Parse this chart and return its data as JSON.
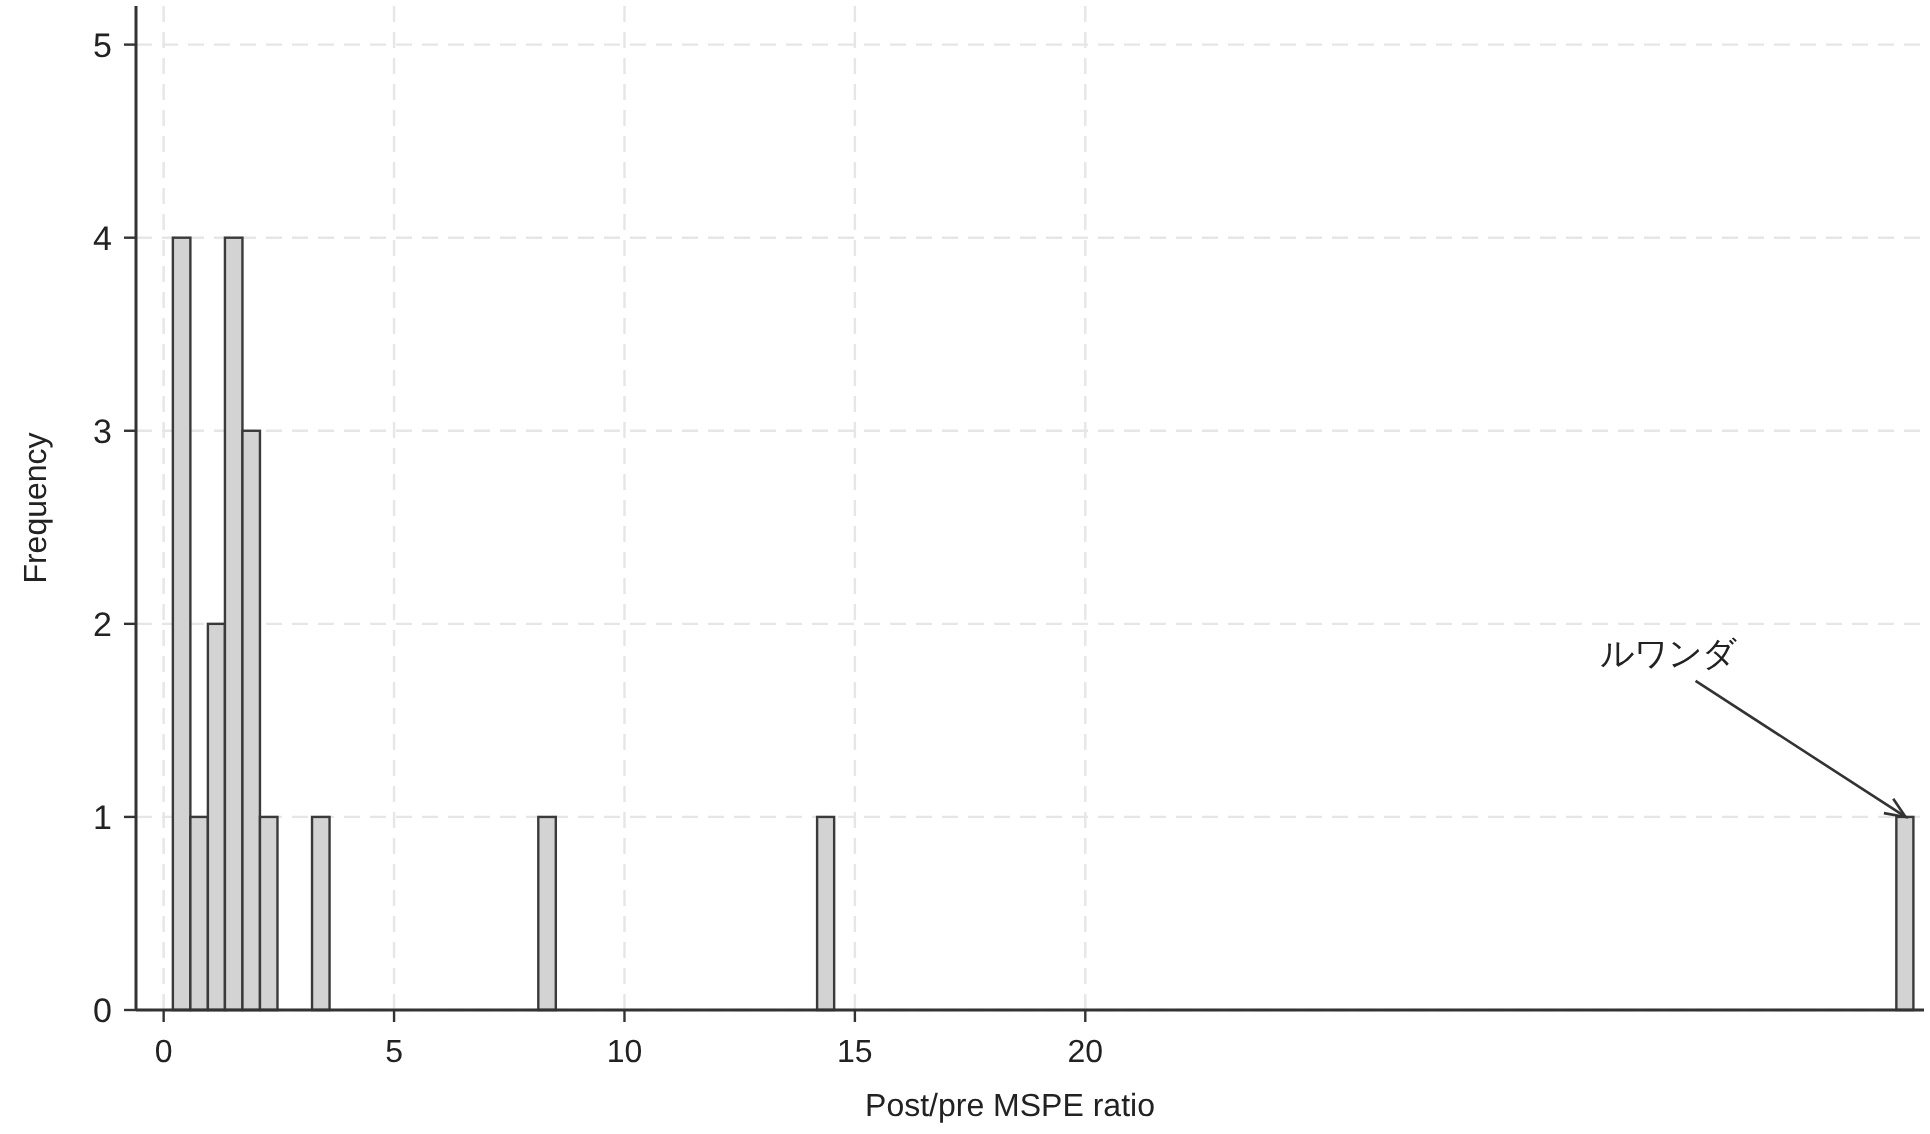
{
  "chart_data": {
    "type": "histogram",
    "xlabel": "Post/pre MSPE ratio",
    "ylabel": "Frequency",
    "bins": [
      0.2,
      0.58,
      0.96,
      1.33,
      1.71,
      2.09,
      2.47,
      3.22,
      3.6,
      8.13,
      8.51,
      14.18,
      14.55,
      37.6,
      37.97
    ],
    "values": [
      4,
      1,
      2,
      4,
      3,
      1,
      0,
      1,
      0,
      1,
      0,
      1,
      0,
      1
    ],
    "color": "#d3d3d3",
    "xlim": [
      -0.6,
      38.2
    ],
    "xticks": [
      0,
      5,
      10,
      15,
      20
    ],
    "ylim": [
      0,
      5.2
    ],
    "yticks": [
      0,
      1,
      2,
      3,
      4,
      5
    ],
    "grid": true,
    "annotations": [
      {
        "text": "ルワンダ",
        "x": 37.8,
        "y": 1
      }
    ]
  }
}
